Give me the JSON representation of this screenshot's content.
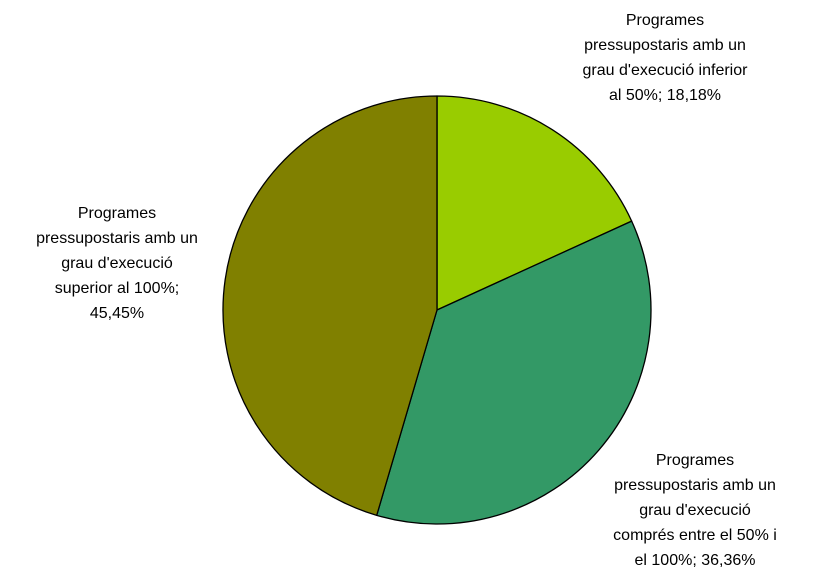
{
  "chart_data": {
    "type": "pie",
    "title": "",
    "legend": "none",
    "slices": [
      {
        "label": "Programes pressupostaris amb un grau d'execució inferior al 50%",
        "value": 18.18,
        "value_label": "18,18%",
        "color": "#99cc00",
        "label_lines": [
          "Programes",
          "pressupostaris amb un",
          "grau d'execució inferior",
          "al 50%; 18,18%"
        ]
      },
      {
        "label": "Programes pressupostaris amb un grau d'execució comprés entre el 50% i el 100%",
        "value": 36.36,
        "value_label": "36,36%",
        "color": "#339966",
        "label_lines": [
          "Programes",
          "pressupostaris amb un",
          "grau d'execució",
          "comprés entre el 50% i",
          "el 100%; 36,36%"
        ]
      },
      {
        "label": "Programes pressupostaris amb un grau d'execució superior al 100%",
        "value": 45.45,
        "value_label": "45,45%",
        "color": "#808000",
        "label_lines": [
          "Programes",
          "pressupostaris amb un",
          "grau d'execució",
          "superior al 100%;",
          "45,45%"
        ]
      }
    ]
  }
}
